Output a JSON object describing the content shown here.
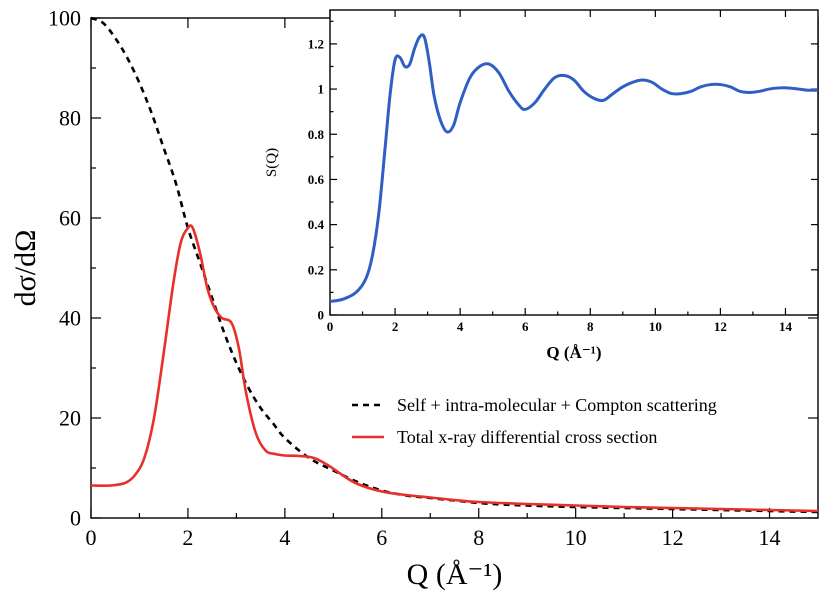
{
  "chart_data": [
    {
      "type": "line",
      "xlabel": "Q (Å⁻¹)",
      "ylabel": "dσ/dΩ",
      "xlim": [
        0,
        15
      ],
      "ylim": [
        0,
        100
      ],
      "xticks": [
        0,
        2,
        4,
        6,
        8,
        10,
        12,
        14
      ],
      "yticks": [
        0,
        20,
        40,
        60,
        80,
        100
      ],
      "legend_position": "right",
      "series": [
        {
          "name": "Self + intra-molecular + Compton scattering",
          "style": "dashed",
          "color": "#000000",
          "x": [
            0,
            0.25,
            0.5,
            0.75,
            1.0,
            1.25,
            1.5,
            1.75,
            2.0,
            2.25,
            2.5,
            2.75,
            3.0,
            3.25,
            3.5,
            3.75,
            4.0,
            4.5,
            5.0,
            5.5,
            6.0,
            6.5,
            7.0,
            7.5,
            8.0,
            8.5,
            9.0,
            10.0,
            11.0,
            12.0,
            13.0,
            14.0,
            15.0
          ],
          "y": [
            100,
            99,
            96,
            92,
            87,
            81,
            74,
            67,
            58,
            51,
            44,
            37,
            31,
            26,
            22,
            19,
            16,
            12,
            9.5,
            7.2,
            5.5,
            4.5,
            4.0,
            3.5,
            3.0,
            2.7,
            2.5,
            2.2,
            2.0,
            1.8,
            1.6,
            1.4,
            1.2
          ]
        },
        {
          "name": "Total x-ray differential cross section",
          "style": "solid",
          "color": "#e8302a",
          "x": [
            0,
            0.4,
            0.7,
            0.9,
            1.1,
            1.3,
            1.5,
            1.7,
            1.85,
            2.0,
            2.1,
            2.25,
            2.4,
            2.55,
            2.7,
            2.9,
            3.05,
            3.2,
            3.4,
            3.6,
            3.8,
            4.0,
            4.3,
            4.6,
            4.9,
            5.2,
            5.5,
            6.0,
            6.5,
            7.0,
            7.5,
            8.0,
            9.0,
            10.0,
            11.0,
            12.0,
            13.0,
            14.0,
            15.0
          ],
          "y": [
            6.5,
            6.5,
            7.0,
            8.5,
            12,
            20,
            33,
            47,
            55,
            58,
            58,
            53,
            46,
            42,
            40,
            39,
            34,
            25,
            17,
            13.5,
            12.8,
            12.5,
            12.4,
            12.0,
            10.5,
            8.5,
            6.8,
            5.3,
            4.6,
            4.1,
            3.6,
            3.2,
            2.8,
            2.5,
            2.2,
            2.0,
            1.8,
            1.6,
            1.4
          ]
        }
      ]
    },
    {
      "type": "line",
      "xlabel": "Q (Å⁻¹)",
      "ylabel": "S(Q)",
      "xlim": [
        0,
        15
      ],
      "ylim": [
        0,
        1.35
      ],
      "xticks": [
        0,
        2,
        4,
        6,
        8,
        10,
        12,
        14
      ],
      "yticks": [
        0,
        0.2,
        0.4,
        0.6,
        0.8,
        1.0,
        1.2
      ],
      "series": [
        {
          "color": "#2f5fc4",
          "x": [
            0,
            0.4,
            0.8,
            1.1,
            1.3,
            1.5,
            1.7,
            1.85,
            2.0,
            2.15,
            2.3,
            2.45,
            2.6,
            2.75,
            2.9,
            3.05,
            3.2,
            3.4,
            3.6,
            3.8,
            4.0,
            4.3,
            4.6,
            4.9,
            5.2,
            5.5,
            5.8,
            6.0,
            6.3,
            6.6,
            6.9,
            7.2,
            7.5,
            7.8,
            8.1,
            8.4,
            8.7,
            9.0,
            9.3,
            9.6,
            9.9,
            10.2,
            10.5,
            10.8,
            11.1,
            11.4,
            11.7,
            12.0,
            12.3,
            12.6,
            12.9,
            13.2,
            13.5,
            13.8,
            14.1,
            14.4,
            14.7,
            15.0
          ],
          "y": [
            0.06,
            0.07,
            0.1,
            0.16,
            0.26,
            0.45,
            0.75,
            0.98,
            1.13,
            1.14,
            1.1,
            1.11,
            1.18,
            1.23,
            1.23,
            1.12,
            0.97,
            0.86,
            0.81,
            0.84,
            0.94,
            1.05,
            1.1,
            1.11,
            1.07,
            0.99,
            0.93,
            0.91,
            0.94,
            1.0,
            1.05,
            1.06,
            1.04,
            0.99,
            0.96,
            0.95,
            0.98,
            1.01,
            1.03,
            1.04,
            1.03,
            1.0,
            0.98,
            0.98,
            0.99,
            1.01,
            1.02,
            1.02,
            1.01,
            0.99,
            0.985,
            0.99,
            1.0,
            1.005,
            1.005,
            1.0,
            0.995,
            0.995
          ]
        }
      ]
    }
  ]
}
